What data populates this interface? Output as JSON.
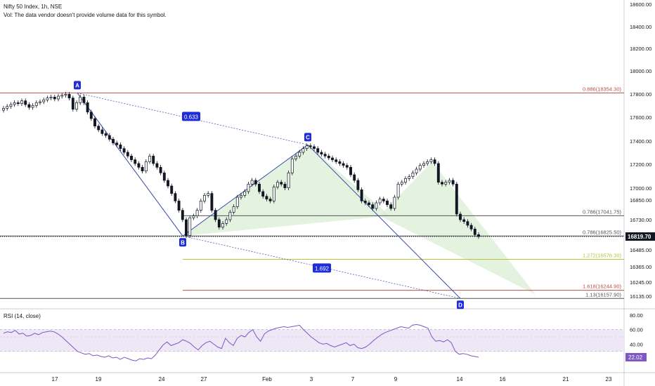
{
  "header": {
    "symbol_line": "Nifty 50 Index, 1h, NSE",
    "volume_note": "Vol: The data vendor doesn't provide volume data for this symbol."
  },
  "rsi": {
    "title": "RSI (14, close)",
    "current_value": "22.02",
    "ylim": [
      0,
      100
    ],
    "y_ticks": [
      "80.00",
      "60.00",
      "40.00",
      "20.00"
    ],
    "band": [
      30,
      60
    ],
    "midline": 50,
    "color": "#7e57c2"
  },
  "chart_data": {
    "type": "candlestick",
    "x_ticks": [
      "17",
      "19",
      "24",
      "27",
      "Feb",
      "3",
      "7",
      "9",
      "14",
      "16",
      "21",
      "23"
    ],
    "y_ticks": [
      "18600.00",
      "18400.00",
      "18200.00",
      "18000.00",
      "17800.00",
      "17600.00",
      "17400.00",
      "17200.00",
      "17000.00",
      "16850.00",
      "16730.00",
      "16610.00",
      "16485.00",
      "16365.00",
      "16245.00",
      "16135.00"
    ],
    "last_price": "16819.70",
    "closes": [
      18190,
      18210,
      18230,
      18250,
      18240,
      18270,
      18230,
      18200,
      18220,
      18250,
      18260,
      18280,
      18300,
      18310,
      18290,
      18320,
      18330,
      18340,
      18300,
      18180,
      18250,
      18310,
      18250,
      18150,
      18080,
      18000,
      17960,
      17920,
      17900,
      17860,
      17820,
      17800,
      17760,
      17720,
      17680,
      17640,
      17600,
      17560,
      17520,
      17620,
      17680,
      17600,
      17560,
      17500,
      17420,
      17360,
      17280,
      17200,
      17100,
      17000,
      16830,
      17020,
      17040,
      17100,
      17200,
      17260,
      17280,
      17100,
      17000,
      16920,
      16960,
      17000,
      17080,
      17140,
      17240,
      17260,
      17300,
      17380,
      17420,
      17380,
      17300,
      17250,
      17220,
      17200,
      17350,
      17400,
      17380,
      17340,
      17500,
      17650,
      17680,
      17720,
      17760,
      17790,
      17780,
      17760,
      17720,
      17700,
      17680,
      17660,
      17640,
      17620,
      17600,
      17580,
      17560,
      17480,
      17420,
      17320,
      17200,
      17180,
      17160,
      17120,
      17180,
      17220,
      17200,
      17160,
      17120,
      17240,
      17380,
      17400,
      17440,
      17460,
      17500,
      17540,
      17580,
      17600,
      17620,
      17640,
      17600,
      17400,
      17380,
      17400,
      17420,
      17380,
      17060,
      17000,
      16980,
      16940,
      16900,
      16840,
      16819.7
    ],
    "rsi_values": [
      55,
      57,
      56,
      59,
      54,
      55,
      51,
      52,
      55,
      53,
      56,
      57,
      58,
      57,
      54,
      50,
      45,
      40,
      35,
      30,
      28,
      26,
      27,
      24,
      25,
      23,
      22,
      24,
      21,
      22,
      19,
      22,
      20,
      18,
      17,
      20,
      19,
      21,
      20,
      25,
      32,
      39,
      43,
      38,
      40,
      42,
      46,
      44,
      41,
      36,
      32,
      38,
      42,
      44,
      40,
      36,
      34,
      48,
      42,
      38,
      48,
      52,
      50,
      56,
      60,
      50,
      44,
      54,
      58,
      60,
      62,
      63,
      64,
      63,
      64,
      65,
      66,
      60,
      55,
      50,
      46,
      42,
      40,
      41,
      38,
      36,
      38,
      40,
      42,
      38,
      40,
      35,
      34,
      36,
      40,
      45,
      49,
      53,
      56,
      58,
      60,
      62,
      64,
      63,
      62,
      66,
      67,
      66,
      64,
      62,
      50,
      44,
      45,
      43,
      46,
      42,
      30,
      26,
      27,
      26,
      24,
      23,
      22.02
    ],
    "fib_levels": [
      {
        "label": "0.886(18354.30)",
        "value": 18354.3,
        "color": "#b7504a"
      },
      {
        "label": "0.786(17041.75)",
        "value": 17041.75,
        "color": "#555555"
      },
      {
        "label": "0.786(16825.50)",
        "value": 16825.5,
        "color": "#555555"
      },
      {
        "label": "1.272(16576.30)",
        "value": 16576.3,
        "color": "#b9c23a"
      },
      {
        "label": "1.618(16244.90)",
        "value": 16244.9,
        "color": "#b7504a"
      },
      {
        "label": "1.13(16157.90)",
        "value": 16157.9,
        "color": "#555555"
      }
    ],
    "pattern": {
      "points": [
        {
          "label": "A",
          "value": 18354.3
        },
        {
          "label": "B",
          "value": 16825.5
        },
        {
          "label": "C",
          "value": 17800
        },
        {
          "label": "D",
          "value": 16157.9
        }
      ],
      "ratios": [
        "0.633",
        "1.692"
      ],
      "line_color": "#3949ab",
      "fill_color": "#d9efd6"
    }
  }
}
